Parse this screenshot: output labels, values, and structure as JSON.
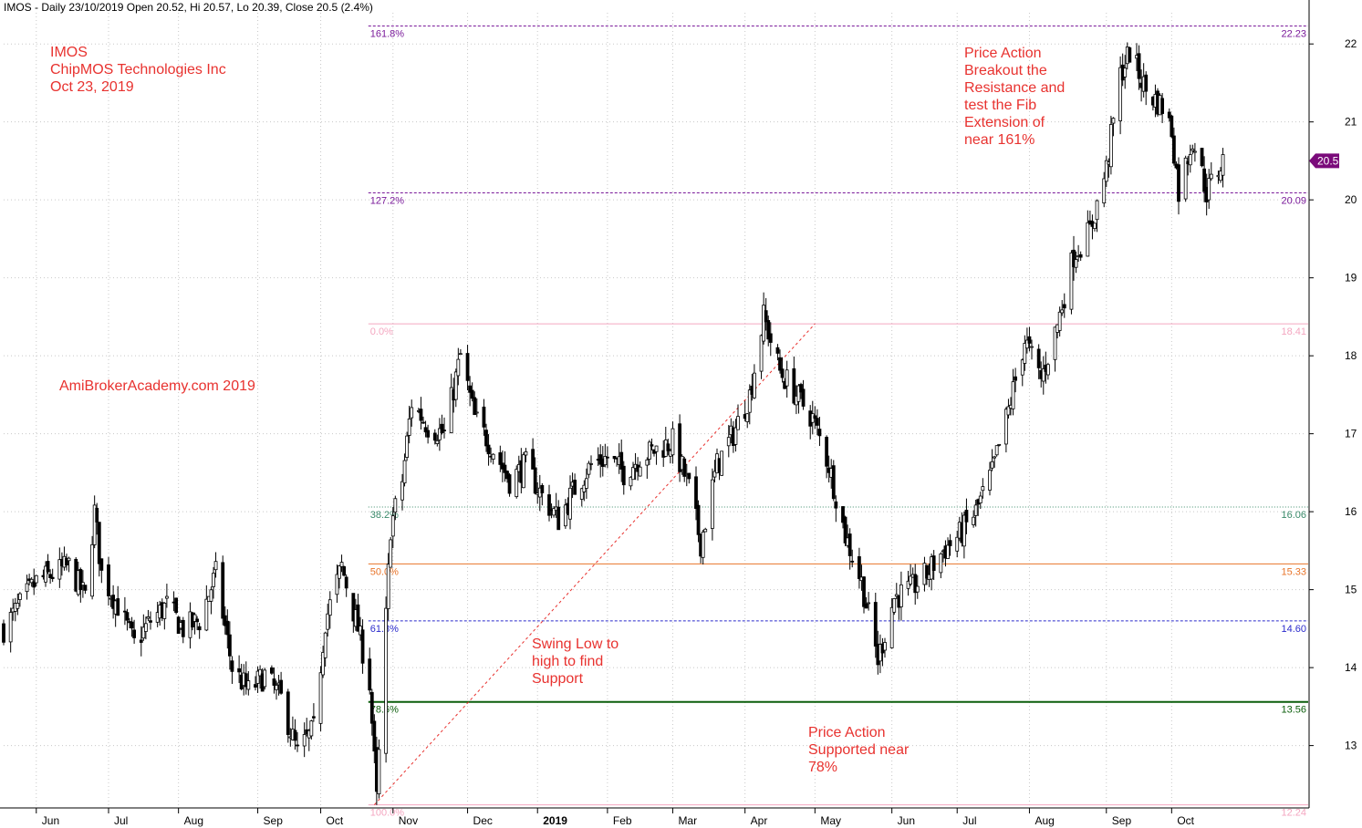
{
  "header": {
    "text": "IMOS - Daily 23/10/2019 Open 20.52, Hi 20.57, Lo 20.39, Close 20.5 (2.4%)"
  },
  "annotations": {
    "title_block": "IMOS\nChipMOS Technologies Inc\nOct 23, 2019",
    "site": "AmiBrokerAcademy.com   2019",
    "swing": "Swing Low to\nhigh to find\nSupport",
    "supported": "Price Action\nSupported near\n78%",
    "breakout": "Price Action\nBreakout the\nResistance and\ntest the Fib\nExtension of\nnear 161%"
  },
  "colors": {
    "candle": "#000000",
    "fib_0": "#f4a6c0",
    "fib_100": "#f4a6c0",
    "fib_382": "#3a8a6a",
    "fib_50": "#e8742a",
    "fib_618": "#2b2bcc",
    "fib_786": "#0b5e0b",
    "fib_ext": "#7a1a9a",
    "swing_line": "#e8322f",
    "price_tag": "#7a0a7a"
  },
  "chart_data": {
    "type": "candlestick",
    "title": "IMOS - Daily 23/10/2019",
    "symbol": "IMOS",
    "last_close": 20.5,
    "last_ohlc": {
      "open": 20.52,
      "high": 20.57,
      "low": 20.39,
      "close": 20.5,
      "change_pct": 2.4
    },
    "price_tag": "20.5",
    "y_axis": {
      "ticks": [
        13,
        14,
        15,
        16,
        17,
        18,
        19,
        20,
        21,
        22
      ],
      "range": [
        12.2,
        22.4
      ],
      "position": "right"
    },
    "x_axis": {
      "labels": [
        "Jun",
        "Jul",
        "Aug",
        "Sep",
        "Oct",
        "Nov",
        "Dec",
        "2019",
        "Feb",
        "Mar",
        "Apr",
        "May",
        "Jun",
        "Jul",
        "Aug",
        "Sep",
        "Oct"
      ],
      "label_dates": [
        "2018-06-01",
        "2018-07-02",
        "2018-08-01",
        "2018-09-04",
        "2018-10-01",
        "2018-11-01",
        "2018-12-03",
        "2019-01-02",
        "2019-02-01",
        "2019-03-01",
        "2019-04-01",
        "2019-05-01",
        "2019-06-03",
        "2019-07-01",
        "2019-08-01",
        "2019-09-03",
        "2019-10-01"
      ],
      "range": [
        "2018-05-18",
        "2019-11-27"
      ]
    },
    "fib_levels": [
      {
        "label": "161.8%",
        "price": "22.23",
        "value": 22.23,
        "style": "dashed",
        "color_key": "fib_ext"
      },
      {
        "label": "127.2%",
        "price": "20.09",
        "value": 20.09,
        "style": "dashed",
        "color_key": "fib_ext"
      },
      {
        "label": "0.0%",
        "price": "18.41",
        "value": 18.41,
        "style": "solid",
        "color_key": "fib_0"
      },
      {
        "label": "38.2%",
        "price": "16.06",
        "value": 16.06,
        "style": "dotted",
        "color_key": "fib_382"
      },
      {
        "label": "50.0%",
        "price": "15.33",
        "value": 15.33,
        "style": "solid",
        "color_key": "fib_50"
      },
      {
        "label": "61.8%",
        "price": "14.60",
        "value": 14.6,
        "style": "dashed",
        "color_key": "fib_618"
      },
      {
        "label": "78.6%",
        "price": "13.56",
        "value": 13.56,
        "style": "solid",
        "color_key": "fib_786"
      },
      {
        "label": "100.0%",
        "price": "12.24",
        "value": 12.24,
        "style": "solid",
        "color_key": "fib_100"
      }
    ],
    "fib_range": {
      "start": "2018-10-23",
      "end": "2019-11-27"
    },
    "swing_line": {
      "from": {
        "date": "2018-10-24",
        "price": 12.24
      },
      "to": {
        "date": "2019-05-01",
        "price": 18.41
      }
    },
    "close_path": [
      [
        "2018-05-18",
        14.5
      ],
      [
        "2018-05-25",
        14.8
      ],
      [
        "2018-06-01",
        15.1
      ],
      [
        "2018-06-08",
        15.2
      ],
      [
        "2018-06-15",
        15.3
      ],
      [
        "2018-06-22",
        14.9
      ],
      [
        "2018-06-26",
        16.0
      ],
      [
        "2018-06-29",
        15.2
      ],
      [
        "2018-07-06",
        14.8
      ],
      [
        "2018-07-13",
        14.3
      ],
      [
        "2018-07-20",
        14.6
      ],
      [
        "2018-07-27",
        14.8
      ],
      [
        "2018-08-03",
        14.5
      ],
      [
        "2018-08-10",
        14.6
      ],
      [
        "2018-08-17",
        15.2
      ],
      [
        "2018-08-24",
        14.0
      ],
      [
        "2018-08-31",
        13.7
      ],
      [
        "2018-09-07",
        13.9
      ],
      [
        "2018-09-14",
        13.6
      ],
      [
        "2018-09-21",
        12.9
      ],
      [
        "2018-09-28",
        13.2
      ],
      [
        "2018-10-03",
        14.6
      ],
      [
        "2018-10-10",
        15.3
      ],
      [
        "2018-10-17",
        14.5
      ],
      [
        "2018-10-22",
        13.8
      ],
      [
        "2018-10-25",
        12.3
      ],
      [
        "2018-10-31",
        15.8
      ],
      [
        "2018-11-05",
        16.4
      ],
      [
        "2018-11-09",
        17.4
      ],
      [
        "2018-11-16",
        17.1
      ],
      [
        "2018-11-23",
        17.0
      ],
      [
        "2018-11-30",
        18.0
      ],
      [
        "2018-12-06",
        17.2
      ],
      [
        "2018-12-14",
        16.8
      ],
      [
        "2018-12-21",
        16.4
      ],
      [
        "2018-12-28",
        16.6
      ],
      [
        "2019-01-04",
        16.2
      ],
      [
        "2019-01-11",
        15.9
      ],
      [
        "2019-01-18",
        16.3
      ],
      [
        "2019-01-25",
        16.6
      ],
      [
        "2019-02-01",
        16.7
      ],
      [
        "2019-02-08",
        16.5
      ],
      [
        "2019-02-15",
        16.7
      ],
      [
        "2019-02-22",
        16.8
      ],
      [
        "2019-03-01",
        16.9
      ],
      [
        "2019-03-08",
        16.3
      ],
      [
        "2019-03-13",
        15.6
      ],
      [
        "2019-03-20",
        16.6
      ],
      [
        "2019-03-27",
        17.0
      ],
      [
        "2019-04-03",
        17.5
      ],
      [
        "2019-04-09",
        18.5
      ],
      [
        "2019-04-16",
        17.8
      ],
      [
        "2019-04-23",
        17.5
      ],
      [
        "2019-04-30",
        17.2
      ],
      [
        "2019-05-07",
        16.6
      ],
      [
        "2019-05-14",
        15.7
      ],
      [
        "2019-05-21",
        15.1
      ],
      [
        "2019-05-28",
        14.1
      ],
      [
        "2019-06-04",
        14.9
      ],
      [
        "2019-06-11",
        15.0
      ],
      [
        "2019-06-18",
        15.2
      ],
      [
        "2019-06-25",
        15.5
      ],
      [
        "2019-07-02",
        15.7
      ],
      [
        "2019-07-09",
        16.0
      ],
      [
        "2019-07-16",
        16.5
      ],
      [
        "2019-07-23",
        17.3
      ],
      [
        "2019-07-30",
        18.2
      ],
      [
        "2019-08-06",
        17.7
      ],
      [
        "2019-08-13",
        18.4
      ],
      [
        "2019-08-20",
        19.3
      ],
      [
        "2019-08-27",
        19.6
      ],
      [
        "2019-09-03",
        20.4
      ],
      [
        "2019-09-09",
        21.6
      ],
      [
        "2019-09-13",
        21.9
      ],
      [
        "2019-09-20",
        21.4
      ],
      [
        "2019-09-27",
        21.2
      ],
      [
        "2019-10-01",
        20.9
      ],
      [
        "2019-10-04",
        20.1
      ],
      [
        "2019-10-10",
        20.8
      ],
      [
        "2019-10-16",
        20.1
      ],
      [
        "2019-10-23",
        20.5
      ]
    ]
  }
}
